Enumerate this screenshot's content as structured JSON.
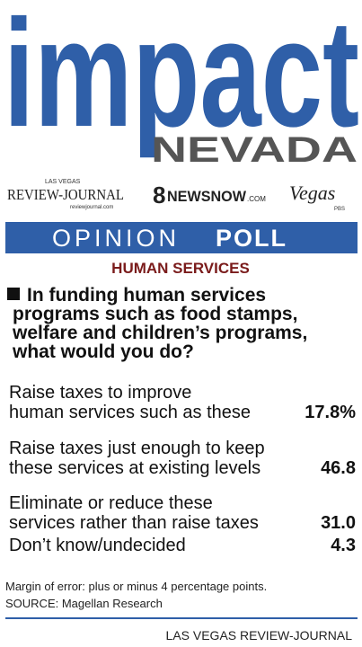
{
  "header": {
    "brand": "impact",
    "region": "NEVADA"
  },
  "sponsors": {
    "newspaper_top": "LAS VEGAS",
    "newspaper": "REVIEW-JOURNAL",
    "newspaper_url": "reviewjournal.com",
    "tv_channel": "8",
    "tv_name": "NEWSNOW",
    "tv_suffix": ".COM",
    "pbs_name": "Vegas",
    "pbs_mark": "PBS"
  },
  "banner": {
    "light": "OPINION",
    "bold": "POLL"
  },
  "section": "HUMAN SERVICES",
  "question": [
    "In funding human services",
    "programs such as food stamps,",
    "welfare and children’s programs,",
    "what would you do?"
  ],
  "table": {
    "rows": [
      {
        "label": [
          "Raise taxes to improve",
          "human services such as these"
        ],
        "value": "17.8%"
      },
      {
        "label": [
          "Raise taxes just enough to keep",
          "these services at existing levels"
        ],
        "value": "46.8"
      },
      {
        "label": [
          "Eliminate or reduce these",
          "services rather than raise taxes"
        ],
        "value": "31.0"
      },
      {
        "label": [
          "Don’t know/undecided"
        ],
        "value": "4.3"
      }
    ]
  },
  "notes": [
    "Margin of error: plus or minus 4 percentage points.",
    "SOURCE: Magellan Research"
  ],
  "credit": "LAS VEGAS REVIEW-JOURNAL"
}
